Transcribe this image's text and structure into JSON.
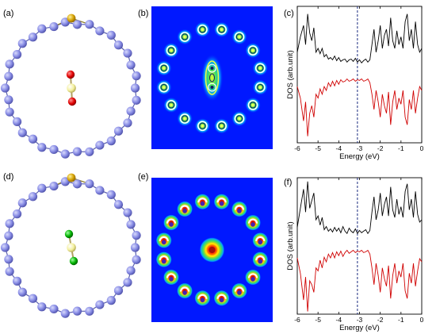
{
  "figure": {
    "panels": [
      {
        "id": "a",
        "label": "(a)",
        "type": "structure",
        "molecule_end_color": "#e00000"
      },
      {
        "id": "b",
        "label": "(b)",
        "type": "charge-density-map",
        "center_shape": "elongated"
      },
      {
        "id": "c",
        "label": "(c)",
        "type": "dos-chart",
        "fermi_level": -3.1
      },
      {
        "id": "d",
        "label": "(d)",
        "type": "structure",
        "molecule_end_color": "#00b000"
      },
      {
        "id": "e",
        "label": "(e)",
        "type": "charge-density-map",
        "center_shape": "round"
      },
      {
        "id": "f",
        "label": "(f)",
        "type": "dos-chart",
        "fermi_level": -3.1
      }
    ],
    "colors": {
      "ring_atom": "#8a8ee6",
      "gold_atom": "#d4a000",
      "molecule_center": "#f4f0a0",
      "map_background": "#0018ff",
      "dos_total": "#000000",
      "dos_partial": "#d00000",
      "fermi_line": "#1a2a80"
    }
  },
  "chart_data": [
    {
      "type": "line",
      "panel": "c",
      "xlabel": "Energy (eV)",
      "ylabel": "DOS (arb.unit)",
      "xlim": [
        -6,
        0
      ],
      "xticks": [
        -6,
        -5,
        -4,
        -3,
        -2,
        -1,
        0
      ],
      "fermi_level": -3.1,
      "series": [
        {
          "color": "#000000",
          "x": [
            -6.0,
            -5.85,
            -5.7,
            -5.6,
            -5.5,
            -5.4,
            -5.3,
            -5.2,
            -5.1,
            -5.0,
            -4.9,
            -4.8,
            -4.7,
            -4.6,
            -4.5,
            -4.4,
            -4.3,
            -4.2,
            -4.1,
            -4.0,
            -3.9,
            -3.8,
            -3.7,
            -3.6,
            -3.5,
            -3.4,
            -3.3,
            -3.2,
            -3.1,
            -3.0,
            -2.9,
            -2.8,
            -2.7,
            -2.6,
            -2.5,
            -2.4,
            -2.3,
            -2.2,
            -2.1,
            -2.0,
            -1.9,
            -1.8,
            -1.7,
            -1.6,
            -1.5,
            -1.4,
            -1.3,
            -1.2,
            -1.1,
            -1.0,
            -0.9,
            -0.8,
            -0.7,
            -0.6,
            -0.5,
            -0.4,
            -0.3,
            -0.2,
            -0.1,
            0.0
          ],
          "y": [
            0.4,
            0.6,
            0.75,
            0.5,
            0.9,
            0.65,
            0.55,
            0.72,
            0.4,
            0.45,
            0.38,
            0.45,
            0.34,
            0.37,
            0.31,
            0.33,
            0.3,
            0.35,
            0.29,
            0.33,
            0.28,
            0.3,
            0.31,
            0.27,
            0.3,
            0.31,
            0.28,
            0.32,
            0.27,
            0.3,
            0.26,
            0.29,
            0.31,
            0.27,
            0.3,
            0.5,
            0.7,
            0.4,
            0.55,
            0.75,
            0.45,
            0.62,
            0.7,
            0.48,
            0.85,
            0.55,
            0.45,
            0.68,
            0.5,
            0.6,
            0.45,
            0.8,
            0.9,
            0.55,
            0.7,
            0.45,
            0.8,
            0.5,
            0.4,
            0.45
          ]
        },
        {
          "color": "#d00000",
          "x": [
            -6.0,
            -5.85,
            -5.7,
            -5.6,
            -5.5,
            -5.4,
            -5.3,
            -5.2,
            -5.1,
            -5.0,
            -4.9,
            -4.8,
            -4.7,
            -4.6,
            -4.5,
            -4.4,
            -4.3,
            -4.2,
            -4.1,
            -4.0,
            -3.9,
            -3.8,
            -3.7,
            -3.6,
            -3.5,
            -3.4,
            -3.3,
            -3.2,
            -3.1,
            -3.0,
            -2.9,
            -2.8,
            -2.7,
            -2.6,
            -2.5,
            -2.4,
            -2.3,
            -2.2,
            -2.1,
            -2.0,
            -1.9,
            -1.8,
            -1.7,
            -1.6,
            -1.5,
            -1.4,
            -1.3,
            -1.2,
            -1.1,
            -1.0,
            -0.9,
            -0.8,
            -0.7,
            -0.6,
            -0.5,
            -0.4,
            -0.3,
            -0.2,
            -0.1,
            0.0
          ],
          "y": [
            -0.05,
            -0.2,
            -0.5,
            -0.25,
            -0.7,
            -0.4,
            -0.3,
            -0.45,
            -0.15,
            -0.2,
            -0.08,
            -0.15,
            -0.05,
            -0.1,
            0.0,
            -0.05,
            0.02,
            -0.04,
            0.03,
            -0.02,
            0.04,
            0.01,
            0.02,
            0.05,
            0.02,
            0.03,
            0.05,
            0.02,
            0.04,
            0.03,
            0.05,
            0.02,
            0.03,
            0.05,
            0.0,
            -0.15,
            -0.35,
            -0.1,
            -0.25,
            -0.45,
            -0.15,
            -0.3,
            -0.4,
            -0.12,
            -0.55,
            -0.25,
            -0.1,
            -0.35,
            -0.2,
            -0.28,
            -0.1,
            -0.45,
            -0.55,
            -0.22,
            -0.35,
            -0.1,
            -0.4,
            -0.2,
            -0.05,
            -0.1
          ]
        }
      ]
    },
    {
      "type": "line",
      "panel": "f",
      "xlabel": "Energy (eV)",
      "ylabel": "DOS (arb.unit)",
      "xlim": [
        -6,
        0
      ],
      "xticks": [
        -6,
        -5,
        -4,
        -3,
        -2,
        -1,
        0
      ],
      "fermi_level": -3.1,
      "series": [
        {
          "color": "#000000",
          "x": [
            -6.0,
            -5.85,
            -5.7,
            -5.6,
            -5.5,
            -5.4,
            -5.3,
            -5.2,
            -5.1,
            -5.0,
            -4.9,
            -4.8,
            -4.7,
            -4.6,
            -4.5,
            -4.4,
            -4.3,
            -4.2,
            -4.1,
            -4.0,
            -3.9,
            -3.8,
            -3.7,
            -3.6,
            -3.5,
            -3.4,
            -3.3,
            -3.2,
            -3.1,
            -3.0,
            -2.9,
            -2.8,
            -2.7,
            -2.6,
            -2.5,
            -2.4,
            -2.3,
            -2.2,
            -2.1,
            -2.0,
            -1.9,
            -1.8,
            -1.7,
            -1.6,
            -1.5,
            -1.4,
            -1.3,
            -1.2,
            -1.1,
            -1.0,
            -0.9,
            -0.8,
            -0.7,
            -0.6,
            -0.5,
            -0.4,
            -0.3,
            -0.2,
            -0.1,
            0.0
          ],
          "y": [
            0.35,
            0.6,
            0.85,
            0.55,
            0.95,
            0.6,
            0.7,
            0.8,
            0.45,
            0.5,
            0.38,
            0.48,
            0.32,
            0.36,
            0.3,
            0.33,
            0.29,
            0.35,
            0.3,
            0.34,
            0.28,
            0.36,
            0.3,
            0.27,
            0.34,
            0.3,
            0.28,
            0.33,
            0.27,
            0.31,
            0.28,
            0.3,
            0.32,
            0.27,
            0.31,
            0.55,
            0.75,
            0.45,
            0.58,
            0.8,
            0.5,
            0.65,
            0.75,
            0.5,
            0.88,
            0.58,
            0.48,
            0.72,
            0.52,
            0.62,
            0.48,
            0.82,
            0.92,
            0.58,
            0.72,
            0.48,
            0.82,
            0.52,
            0.42,
            0.45
          ]
        },
        {
          "color": "#d00000",
          "x": [
            -6.0,
            -5.85,
            -5.7,
            -5.6,
            -5.5,
            -5.4,
            -5.3,
            -5.2,
            -5.1,
            -5.0,
            -4.9,
            -4.8,
            -4.7,
            -4.6,
            -4.5,
            -4.4,
            -4.3,
            -4.2,
            -4.1,
            -4.0,
            -3.9,
            -3.8,
            -3.7,
            -3.6,
            -3.5,
            -3.4,
            -3.3,
            -3.2,
            -3.1,
            -3.0,
            -2.9,
            -2.8,
            -2.7,
            -2.6,
            -2.5,
            -2.4,
            -2.3,
            -2.2,
            -2.1,
            -2.0,
            -1.9,
            -1.8,
            -1.7,
            -1.6,
            -1.5,
            -1.4,
            -1.3,
            -1.2,
            -1.1,
            -1.0,
            -0.9,
            -0.8,
            -0.7,
            -0.6,
            -0.5,
            -0.4,
            -0.3,
            -0.2,
            -0.1,
            0.0
          ],
          "y": [
            -0.05,
            -0.25,
            -0.6,
            -0.3,
            -0.75,
            -0.35,
            -0.4,
            -0.5,
            -0.18,
            -0.22,
            -0.08,
            -0.18,
            -0.04,
            -0.1,
            0.0,
            -0.05,
            0.02,
            -0.05,
            0.03,
            -0.02,
            0.04,
            -0.03,
            0.02,
            0.05,
            0.01,
            0.03,
            0.05,
            0.02,
            0.04,
            0.03,
            0.05,
            0.02,
            0.03,
            0.05,
            0.0,
            -0.18,
            -0.4,
            -0.12,
            -0.28,
            -0.5,
            -0.18,
            -0.32,
            -0.42,
            -0.15,
            -0.58,
            -0.28,
            -0.12,
            -0.38,
            -0.22,
            -0.3,
            -0.12,
            -0.48,
            -0.58,
            -0.25,
            -0.38,
            -0.12,
            -0.42,
            -0.22,
            -0.06,
            -0.1
          ]
        }
      ]
    }
  ]
}
